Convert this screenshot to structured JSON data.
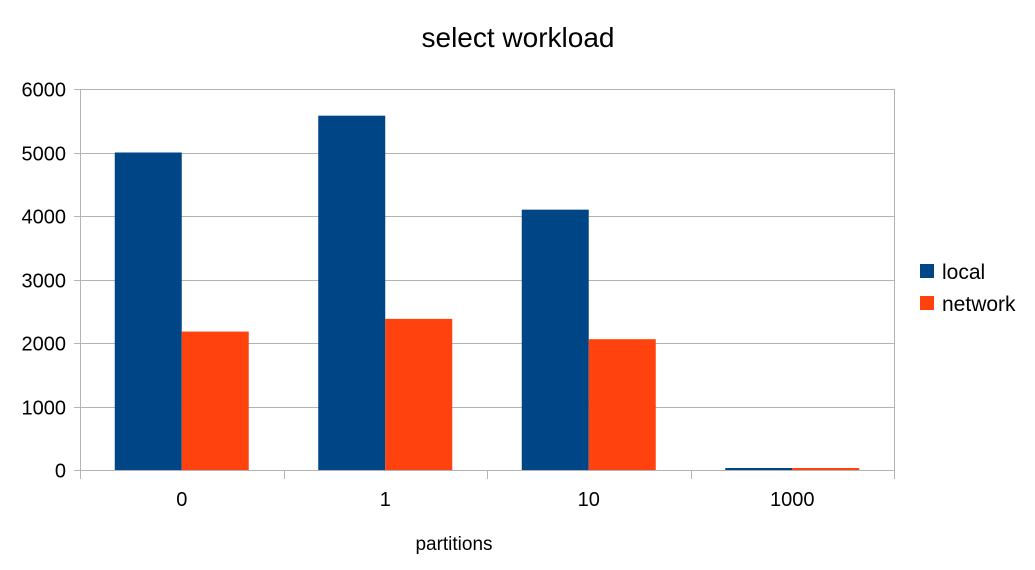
{
  "chart_data": {
    "type": "bar",
    "title": "select workload",
    "xlabel": "partitions",
    "ylabel": "",
    "categories": [
      "0",
      "1",
      "10",
      "1000"
    ],
    "series": [
      {
        "name": "local",
        "color": "#004586",
        "values": [
          5000,
          5580,
          4100,
          20
        ]
      },
      {
        "name": "network",
        "color": "#ff420e",
        "values": [
          2180,
          2380,
          2060,
          20
        ]
      }
    ],
    "ylim": [
      0,
      6000
    ],
    "yticks": [
      "0",
      "1000",
      "2000",
      "3000",
      "4000",
      "5000",
      "6000"
    ],
    "grid": true,
    "legend_position": "right"
  }
}
